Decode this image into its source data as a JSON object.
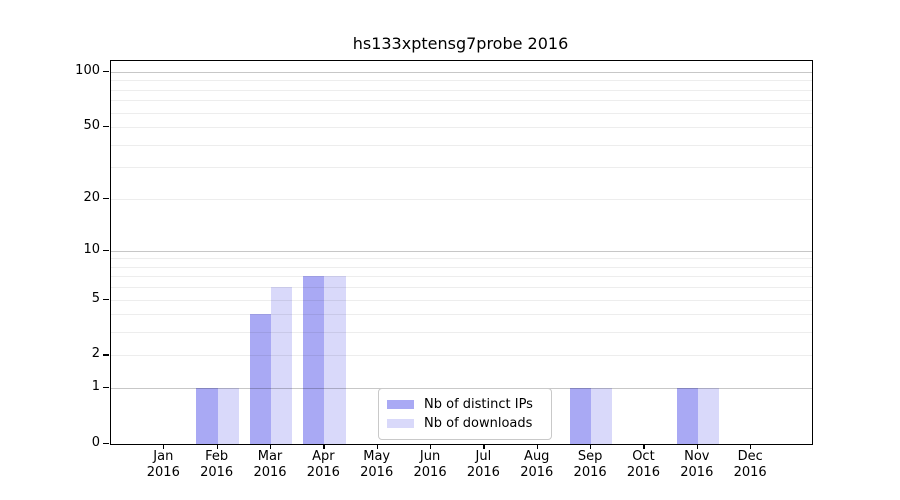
{
  "chart_data": {
    "type": "bar",
    "title": "hs133xptensg7probe 2016",
    "categories": [
      "Jan",
      "Feb",
      "Mar",
      "Apr",
      "May",
      "Jun",
      "Jul",
      "Aug",
      "Sep",
      "Oct",
      "Nov",
      "Dec"
    ],
    "x_sublabel": "2016",
    "series": [
      {
        "name": "Nb of distinct IPs",
        "color": "#a9a9f4",
        "values": [
          0,
          1,
          4,
          7,
          0,
          0,
          0,
          0,
          1,
          0,
          1,
          0
        ]
      },
      {
        "name": "Nb of downloads",
        "color": "#d9d9fa",
        "values": [
          0,
          1,
          6,
          7,
          0,
          0,
          0,
          0,
          1,
          0,
          1,
          0
        ]
      }
    ],
    "yscale": "log1p",
    "ylim": [
      0,
      115
    ],
    "yticks": [
      0,
      1,
      2,
      5,
      10,
      20,
      50,
      100
    ],
    "ygrid_major": [
      1,
      10,
      100
    ],
    "ygrid_minor": [
      2,
      3,
      4,
      5,
      6,
      7,
      8,
      9,
      20,
      30,
      40,
      50,
      60,
      70,
      80,
      90
    ],
    "grid": true,
    "legend_position": "bottom-center"
  },
  "colors": {
    "background": "#ffffff",
    "axis": "#000000",
    "grid_major": "#c8c8c8",
    "grid_minor": "#ebebeb",
    "legend_border": "#c9c9c9",
    "bar_dark": "#a9a9f4",
    "bar_light": "#d9d9fa"
  }
}
